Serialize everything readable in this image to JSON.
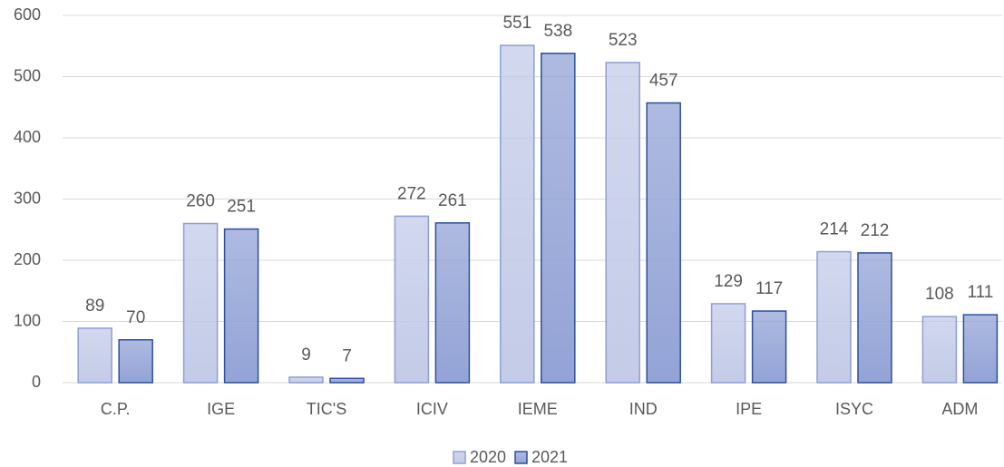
{
  "chart_data": {
    "type": "bar",
    "categories": [
      "C.P.",
      "IGE",
      "TIC'S",
      "ICIV",
      "IEME",
      "IND",
      "IPE",
      "ISYC",
      "ADM"
    ],
    "series": [
      {
        "name": "2020",
        "color": "#c3cbe8",
        "border": "#8e9fd3",
        "values": [
          89,
          260,
          9,
          272,
          551,
          523,
          129,
          214,
          108
        ]
      },
      {
        "name": "2021",
        "color": "#93a3d6",
        "border": "#2f4f9a",
        "values": [
          70,
          251,
          7,
          261,
          538,
          457,
          117,
          212,
          111
        ]
      }
    ],
    "ylim": [
      0,
      600
    ],
    "yticks": [
      0,
      100,
      200,
      300,
      400,
      500,
      600
    ],
    "grid": true,
    "legend": "bottom"
  }
}
